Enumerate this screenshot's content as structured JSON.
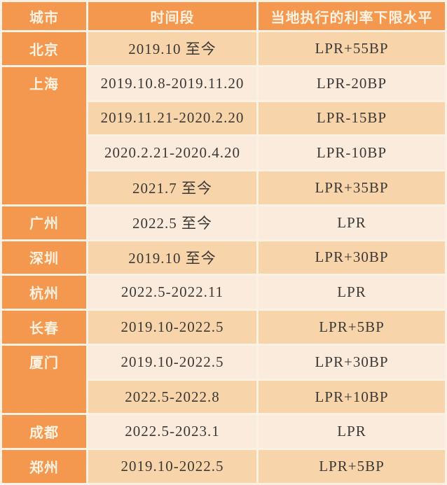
{
  "table": {
    "columns": [
      {
        "label": "城市"
      },
      {
        "label": "时间段"
      },
      {
        "label": "当地执行的利率下限水平"
      }
    ],
    "rows": [
      {
        "city": "北京",
        "city_rowspan": 1,
        "period": "2019.10 至今",
        "rate": "LPR+55BP"
      },
      {
        "city": "上海",
        "city_rowspan": 4,
        "period": "2019.10.8-2019.11.20",
        "rate": "LPR-20BP"
      },
      {
        "period": "2019.11.21-2020.2.20",
        "rate": "LPR-15BP"
      },
      {
        "period": "2020.2.21-2020.4.20",
        "rate": "LPR-10BP"
      },
      {
        "period": "2021.7 至今",
        "rate": "LPR+35BP"
      },
      {
        "city": "广州",
        "city_rowspan": 1,
        "period": "2022.5 至今",
        "rate": "LPR"
      },
      {
        "city": "深圳",
        "city_rowspan": 1,
        "period": "2019.10 至今",
        "rate": "LPR+30BP"
      },
      {
        "city": "杭州",
        "city_rowspan": 1,
        "period": "2022.5-2022.11",
        "rate": "LPR"
      },
      {
        "city": "长春",
        "city_rowspan": 1,
        "period": "2019.10-2022.5",
        "rate": "LPR+5BP"
      },
      {
        "city": "厦门",
        "city_rowspan": 2,
        "period": "2019.10-2022.5",
        "rate": "LPR+30BP"
      },
      {
        "period": "2022.5-2022.8",
        "rate": "LPR+10BP"
      },
      {
        "city": "成都",
        "city_rowspan": 1,
        "period": "2022.5-2023.1",
        "rate": "LPR"
      },
      {
        "city": "郑州",
        "city_rowspan": 1,
        "period": "2019.10-2022.5",
        "rate": "LPR+5BP"
      }
    ],
    "colors": {
      "header_bg": "#F3984E",
      "city_bg": "#F3984E",
      "row_alt_dark": "#F8D4AB",
      "row_alt_light": "#FBEBDC",
      "gridline": "#FAF1E5",
      "header_text": "#FCF2E2",
      "cell_text": "#3B3835"
    }
  },
  "chart_data": {
    "type": "table",
    "title": "",
    "columns": [
      "城市",
      "时间段",
      "当地执行的利率下限水平"
    ],
    "rows": [
      [
        "北京",
        "2019.10 至今",
        "LPR+55BP"
      ],
      [
        "上海",
        "2019.10.8-2019.11.20",
        "LPR-20BP"
      ],
      [
        "上海",
        "2019.11.21-2020.2.20",
        "LPR-15BP"
      ],
      [
        "上海",
        "2020.2.21-2020.4.20",
        "LPR-10BP"
      ],
      [
        "上海",
        "2021.7 至今",
        "LPR+35BP"
      ],
      [
        "广州",
        "2022.5 至今",
        "LPR"
      ],
      [
        "深圳",
        "2019.10 至今",
        "LPR+30BP"
      ],
      [
        "杭州",
        "2022.5-2022.11",
        "LPR"
      ],
      [
        "长春",
        "2019.10-2022.5",
        "LPR+5BP"
      ],
      [
        "厦门",
        "2019.10-2022.5",
        "LPR+30BP"
      ],
      [
        "厦门",
        "2022.5-2022.8",
        "LPR+10BP"
      ],
      [
        "成都",
        "2022.5-2023.1",
        "LPR"
      ],
      [
        "郑州",
        "2019.10-2022.5",
        "LPR+5BP"
      ]
    ],
    "layout": {
      "merged_city_cells": [
        {
          "city": "上海",
          "rows_spanned": 4
        },
        {
          "city": "厦门",
          "rows_spanned": 2
        }
      ],
      "row_shading": "alternating (first data row darker peach)",
      "grid": "white separator lines between cells"
    }
  }
}
